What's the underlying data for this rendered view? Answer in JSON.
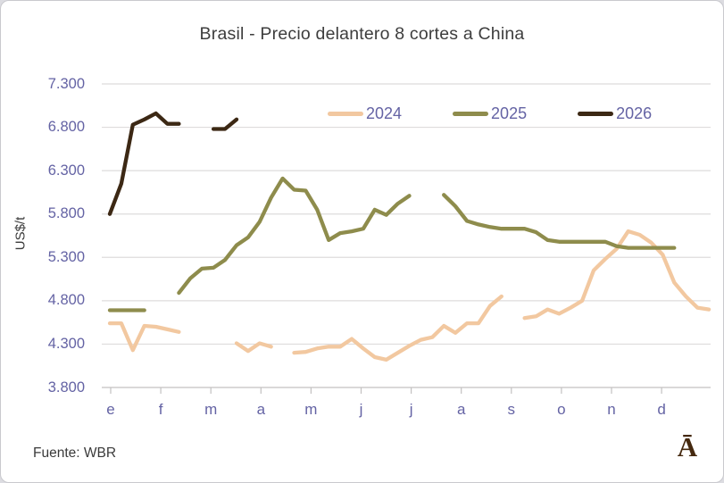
{
  "title": "Brasil - Precio delantero 8 cortes a China",
  "source": "Fuente: WBR",
  "logo": "Ā",
  "colors": {
    "title_text": "#3d3d3d",
    "axis_text": "#6463a4",
    "gridline": "#dedcdc",
    "axis_line": "#c3c1c1",
    "logo": "#45290f",
    "series_2024": "#f2c8a0",
    "series_2025": "#8e8c4c",
    "series_2026": "#3c2814"
  },
  "chart_data": {
    "type": "line",
    "title": "Brasil - Precio delantero 8 cortes a China",
    "xlabel": "",
    "ylabel": "US$/t",
    "ylim": [
      3800,
      7300
    ],
    "grid": "horizontal",
    "legend_position": "top-inside",
    "x_unit": "week of year (0-52)",
    "y_ticks": [
      7300,
      6800,
      6300,
      5800,
      5300,
      4800,
      4300,
      3800
    ],
    "y_tick_labels": [
      "7.300",
      "6.800",
      "6.300",
      "5.800",
      "5.300",
      "4.800",
      "4.300",
      "3.800"
    ],
    "x_tick_labels": [
      "e",
      "f",
      "m",
      "a",
      "m",
      "j",
      "j",
      "a",
      "s",
      "o",
      "n",
      "d"
    ],
    "series": [
      {
        "name": "2024",
        "color": "#f2c8a0",
        "segments": [
          [
            [
              0,
              4540
            ],
            [
              1,
              4540
            ],
            [
              2,
              4230
            ],
            [
              3,
              4510
            ],
            [
              4,
              4500
            ],
            [
              5,
              4470
            ],
            [
              6,
              4440
            ]
          ],
          [
            [
              11,
              4310
            ],
            [
              12,
              4220
            ],
            [
              13,
              4310
            ],
            [
              14,
              4270
            ]
          ],
          [
            [
              16,
              4200
            ],
            [
              17,
              4210
            ],
            [
              18,
              4250
            ],
            [
              19,
              4270
            ],
            [
              20,
              4270
            ],
            [
              21,
              4360
            ],
            [
              22,
              4250
            ],
            [
              23,
              4150
            ],
            [
              24,
              4120
            ],
            [
              25,
              4200
            ],
            [
              26,
              4280
            ],
            [
              27,
              4350
            ],
            [
              28,
              4380
            ],
            [
              29,
              4510
            ],
            [
              30,
              4430
            ],
            [
              31,
              4540
            ],
            [
              32,
              4540
            ],
            [
              33,
              4740
            ],
            [
              34,
              4850
            ]
          ],
          [
            [
              36,
              4600
            ],
            [
              37,
              4620
            ],
            [
              38,
              4700
            ],
            [
              39,
              4650
            ],
            [
              40,
              4720
            ],
            [
              41,
              4800
            ],
            [
              42,
              5150
            ],
            [
              43,
              5280
            ],
            [
              44,
              5400
            ],
            [
              45,
              5600
            ],
            [
              46,
              5560
            ],
            [
              47,
              5470
            ],
            [
              48,
              5330
            ],
            [
              49,
              5010
            ],
            [
              50,
              4850
            ],
            [
              51,
              4720
            ],
            [
              52,
              4700
            ]
          ]
        ]
      },
      {
        "name": "2025",
        "color": "#8e8c4c",
        "segments": [
          [
            [
              0,
              4690
            ],
            [
              1,
              4690
            ],
            [
              2,
              4690
            ],
            [
              3,
              4690
            ]
          ],
          [
            [
              6,
              4890
            ],
            [
              7,
              5060
            ],
            [
              8,
              5170
            ],
            [
              9,
              5180
            ],
            [
              10,
              5270
            ],
            [
              11,
              5440
            ],
            [
              12,
              5530
            ],
            [
              13,
              5710
            ],
            [
              14,
              5990
            ],
            [
              15,
              6210
            ],
            [
              16,
              6080
            ],
            [
              17,
              6070
            ],
            [
              18,
              5850
            ],
            [
              19,
              5500
            ],
            [
              20,
              5580
            ],
            [
              21,
              5600
            ],
            [
              22,
              5630
            ],
            [
              23,
              5850
            ],
            [
              24,
              5790
            ],
            [
              25,
              5920
            ],
            [
              26,
              6010
            ]
          ],
          [
            [
              29,
              6020
            ],
            [
              30,
              5890
            ],
            [
              31,
              5720
            ],
            [
              32,
              5680
            ],
            [
              33,
              5650
            ],
            [
              34,
              5630
            ],
            [
              35,
              5630
            ],
            [
              36,
              5630
            ],
            [
              37,
              5590
            ],
            [
              38,
              5500
            ],
            [
              39,
              5480
            ],
            [
              40,
              5480
            ],
            [
              41,
              5480
            ],
            [
              42,
              5480
            ],
            [
              43,
              5480
            ],
            [
              44,
              5430
            ],
            [
              45,
              5410
            ],
            [
              46,
              5410
            ],
            [
              47,
              5410
            ],
            [
              48,
              5410
            ],
            [
              49,
              5410
            ]
          ]
        ]
      },
      {
        "name": "2026",
        "color": "#3c2814",
        "segments": [
          [
            [
              0,
              5800
            ],
            [
              1,
              6150
            ],
            [
              2,
              6830
            ],
            [
              3,
              6890
            ],
            [
              4,
              6960
            ],
            [
              5,
              6840
            ],
            [
              6,
              6840
            ]
          ],
          [
            [
              9,
              6780
            ],
            [
              10,
              6780
            ],
            [
              11,
              6890
            ]
          ]
        ]
      }
    ]
  }
}
